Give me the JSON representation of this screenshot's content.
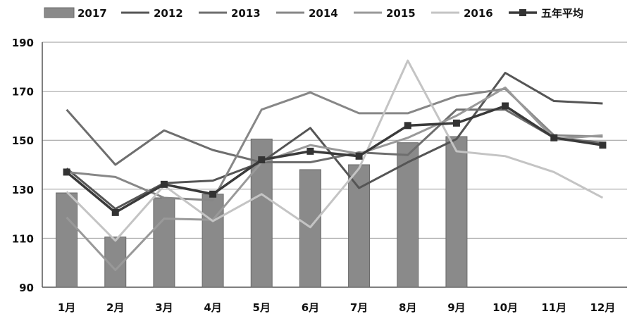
{
  "chart_data": {
    "type": "bar+line",
    "title": "",
    "xlabel": "",
    "ylabel": "",
    "ylim": [
      90,
      190
    ],
    "yticks": [
      "90",
      "110",
      "130",
      "150",
      "170",
      "190"
    ],
    "categories": [
      "1月",
      "2月",
      "3月",
      "4月",
      "5月",
      "6月",
      "7月",
      "8月",
      "9月",
      "10月",
      "11月",
      "12月"
    ],
    "grid": "horizontal",
    "legend_position": "top",
    "bar_series": {
      "name": "2017",
      "color": "#8a8a8a",
      "values": [
        128.5,
        110.5,
        126.5,
        128,
        150.5,
        138,
        140,
        149,
        151.5,
        null,
        null,
        null
      ]
    },
    "line_series": [
      {
        "name": "2012",
        "color": "#555555",
        "values": [
          138.5,
          122,
          132.5,
          133.5,
          141,
          155,
          130.5,
          141,
          150.5,
          177.5,
          166,
          165
        ]
      },
      {
        "name": "2013",
        "color": "#6e6e6e",
        "values": [
          162.5,
          140,
          154,
          146,
          141,
          141,
          145,
          144,
          162.5,
          162.5,
          151,
          149
        ]
      },
      {
        "name": "2014",
        "color": "#878787",
        "values": [
          137,
          135,
          126.5,
          125.5,
          162.5,
          169.5,
          161,
          161,
          168,
          171,
          152,
          151.5
        ]
      },
      {
        "name": "2015",
        "color": "#999999",
        "values": [
          118.5,
          97,
          118,
          117.5,
          141,
          148,
          144.5,
          151,
          160,
          171.5,
          150.5,
          152
        ]
      },
      {
        "name": "2016",
        "color": "#c4c4c4",
        "values": [
          129,
          109,
          131.5,
          117,
          128,
          114.5,
          138.5,
          182.5,
          145.5,
          143.5,
          137,
          126.5
        ]
      }
    ],
    "average_series": {
      "name": "五年平均",
      "color": "#3a3a3a",
      "values": [
        137,
        120.5,
        132,
        128,
        142,
        145.5,
        143.5,
        156,
        157,
        164,
        151,
        148
      ]
    }
  }
}
